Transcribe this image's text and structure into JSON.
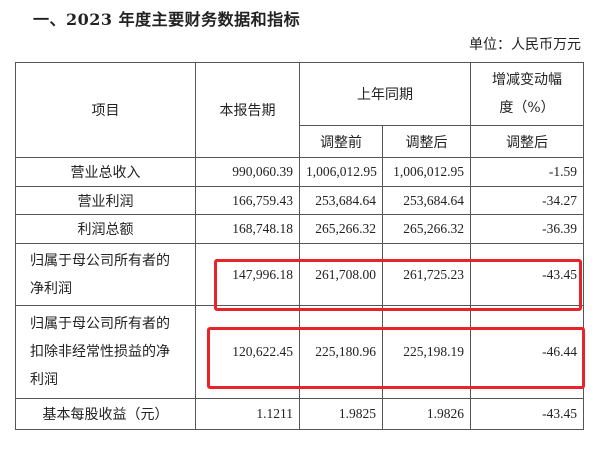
{
  "section_title": "一、2023 年度主要财务数据和指标",
  "unit_label": "单位：人民币万元",
  "headers": {
    "item": "项目",
    "current_period": "本报告期",
    "prior_period": "上年同期",
    "change_line1": "增减变动幅",
    "change_line2": "度（%）",
    "before_adjust": "调整前",
    "after_adjust": "调整后",
    "change_basis": "调整后"
  },
  "rows": [
    {
      "label": "营业总收入",
      "current": "990,060.39",
      "before": "1,006,012.95",
      "after": "1,006,012.95",
      "change": "-1.59"
    },
    {
      "label": "营业利润",
      "current": "166,759.43",
      "before": "253,684.64",
      "after": "253,684.64",
      "change": "-34.27"
    },
    {
      "label": "利润总额",
      "current": "168,748.18",
      "before": "265,266.32",
      "after": "265,266.32",
      "change": "-36.39"
    },
    {
      "label_line1": "归属于母公司所有者的",
      "label_line2": "净利润",
      "current": "147,996.18",
      "before": "261,708.00",
      "after": "261,725.23",
      "change": "-43.45"
    },
    {
      "label_line1": "归属于母公司所有者的",
      "label_line2": "扣除非经常性损益的净",
      "label_line3": "利润",
      "current": "120,622.45",
      "before": "225,180.96",
      "after": "225,198.19",
      "change": "-46.44"
    },
    {
      "label": "基本每股收益（元）",
      "current": "1.1211",
      "before": "1.9825",
      "after": "1.9826",
      "change": "-43.45"
    }
  ],
  "highlight_color": "#e8232a"
}
